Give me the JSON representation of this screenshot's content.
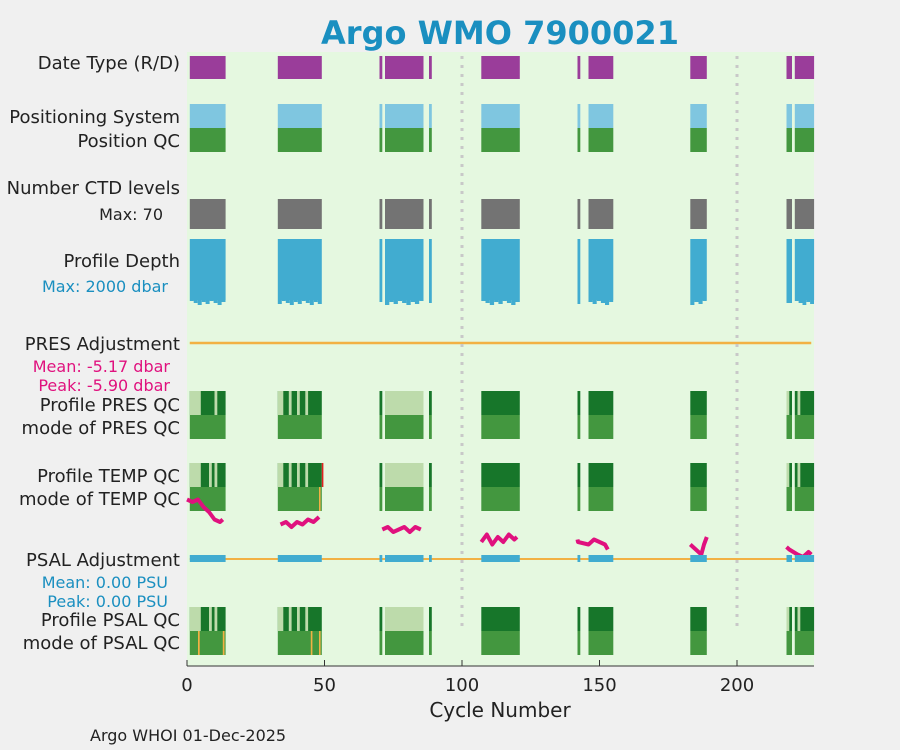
{
  "chart_data": {
    "type": "heatmap",
    "title": "Argo WMO 7900021",
    "xlabel": "Cycle Number",
    "xlim": [
      0,
      228
    ],
    "x_ticks": [
      0,
      50,
      100,
      150,
      200
    ],
    "grid": false,
    "footer": "Argo WHOI 01-Dec-2025",
    "colors": {
      "title": "#1a8fc0",
      "background": "#e5f8e0",
      "date_type": "#9a3d9a",
      "positioning_system": "#7fc6e0",
      "qc_good": "#43973f",
      "qc_dark": "#17762a",
      "qc_light": "#bddbab",
      "ctd_levels": "#737373",
      "profile_depth": "#41acd0",
      "pres_adjustment": "#f2b144",
      "temp_trace": "#e0117e",
      "psal_adjustment_bar": "#41acd0",
      "psal_line": "#f2b144",
      "qc_flag": "#f2b144",
      "red_flag": "#e02020",
      "dotted_marker": "#c8c8c8",
      "pink_text": "#e0117e",
      "blue_text": "#1a8fc0"
    },
    "row_labels": {
      "date_type": "Date Type (R/D)",
      "positioning_system": "Positioning System",
      "position_qc": "Position QC",
      "number_ctd_levels": "Number CTD levels",
      "ctd_max": "Max: 70",
      "profile_depth": "Profile Depth",
      "depth_max": "Max: 2000 dbar",
      "pres_adjustment": "PRES Adjustment",
      "pres_mean": "Mean: -5.17 dbar",
      "pres_peak": "Peak: -5.90 dbar",
      "profile_pres_qc": "Profile PRES QC",
      "mode_pres_qc": "mode of PRES QC",
      "profile_temp_qc": "Profile TEMP QC",
      "mode_temp_qc": "mode of TEMP QC",
      "psal_adjustment": "PSAL Adjustment",
      "psal_mean": "Mean: 0.00 PSU",
      "psal_peak": "Peak: 0.00 PSU",
      "profile_psal_qc": "Profile PSAL QC",
      "mode_psal_qc": "mode of PSAL QC"
    },
    "cycle_segments": [
      [
        1,
        14
      ],
      [
        33,
        49
      ],
      [
        70,
        71
      ],
      [
        72,
        86
      ],
      [
        88,
        89
      ],
      [
        107,
        121
      ],
      [
        142,
        143
      ],
      [
        146,
        155
      ],
      [
        183,
        189
      ],
      [
        218,
        220
      ],
      [
        221,
        228
      ]
    ],
    "dotted_markers": [
      100,
      200
    ],
    "ctd_max": 70,
    "depth_max_dbar": 2000,
    "pres_adjustment_mean_dbar": -5.17,
    "pres_adjustment_peak_dbar": -5.9,
    "psal_adjustment_mean_psu": 0.0,
    "psal_adjustment_peak_psu": 0.0,
    "qc_light_cycles": {
      "pres": [
        [
          1,
          5
        ],
        [
          10,
          11
        ],
        [
          33,
          35
        ],
        [
          37,
          38
        ],
        [
          40,
          41
        ],
        [
          43,
          44
        ],
        [
          72,
          86
        ],
        [
          218,
          219
        ],
        [
          222,
          223
        ]
      ],
      "temp": [
        [
          1,
          5
        ],
        [
          8,
          9
        ],
        [
          10,
          11
        ],
        [
          33,
          35
        ],
        [
          37,
          38
        ],
        [
          40,
          41
        ],
        [
          43,
          44
        ],
        [
          72,
          86
        ],
        [
          218,
          219
        ],
        [
          222,
          223
        ]
      ],
      "psal": [
        [
          1,
          5
        ],
        [
          8,
          9
        ],
        [
          10,
          11
        ],
        [
          33,
          35
        ],
        [
          37,
          38
        ],
        [
          40,
          41
        ],
        [
          43,
          44
        ],
        [
          72,
          86
        ],
        [
          218,
          219
        ],
        [
          222,
          223
        ]
      ]
    },
    "qc_flag_cycles": {
      "temp": [
        48
      ],
      "psal": [
        4,
        13,
        45,
        48
      ]
    },
    "red_flag_cycles": {
      "temp": [
        49
      ]
    },
    "temp_trace": [
      [
        [
          0,
          0.1
        ],
        [
          2,
          0.2
        ],
        [
          4,
          0.1
        ],
        [
          6,
          0.4
        ],
        [
          8,
          0.6
        ],
        [
          10,
          0.9
        ],
        [
          12,
          1.0
        ],
        [
          13,
          0.9
        ]
      ],
      [
        [
          34,
          1.1
        ],
        [
          36,
          1.0
        ],
        [
          38,
          1.2
        ],
        [
          40,
          1.0
        ],
        [
          42,
          1.1
        ],
        [
          44,
          0.9
        ],
        [
          46,
          1.0
        ],
        [
          48,
          0.8
        ]
      ],
      [
        [
          71,
          1.3
        ],
        [
          73,
          1.2
        ],
        [
          75,
          1.4
        ],
        [
          77,
          1.3
        ],
        [
          79,
          1.2
        ],
        [
          81,
          1.4
        ],
        [
          83,
          1.2
        ],
        [
          85,
          1.3
        ]
      ],
      [
        [
          107,
          1.8
        ],
        [
          109,
          1.5
        ],
        [
          111,
          1.9
        ],
        [
          113,
          1.6
        ],
        [
          115,
          1.8
        ],
        [
          117,
          1.5
        ],
        [
          119,
          1.7
        ],
        [
          120,
          1.6
        ]
      ],
      [
        [
          142,
          1.7
        ],
        [
          142.2,
          1.8
        ],
        [
          146,
          1.9
        ],
        [
          148,
          1.7
        ],
        [
          150,
          1.8
        ],
        [
          152,
          1.9
        ],
        [
          153,
          2.1
        ]
      ],
      [
        [
          183,
          1.9
        ],
        [
          185,
          2.1
        ],
        [
          187,
          2.3
        ],
        [
          188,
          1.9
        ],
        [
          189,
          1.6
        ]
      ],
      [
        [
          218,
          2.0
        ],
        [
          219,
          2.1
        ],
        [
          222,
          2.3
        ],
        [
          224,
          2.4
        ],
        [
          226,
          2.2
        ],
        [
          227,
          2.3
        ]
      ]
    ]
  }
}
